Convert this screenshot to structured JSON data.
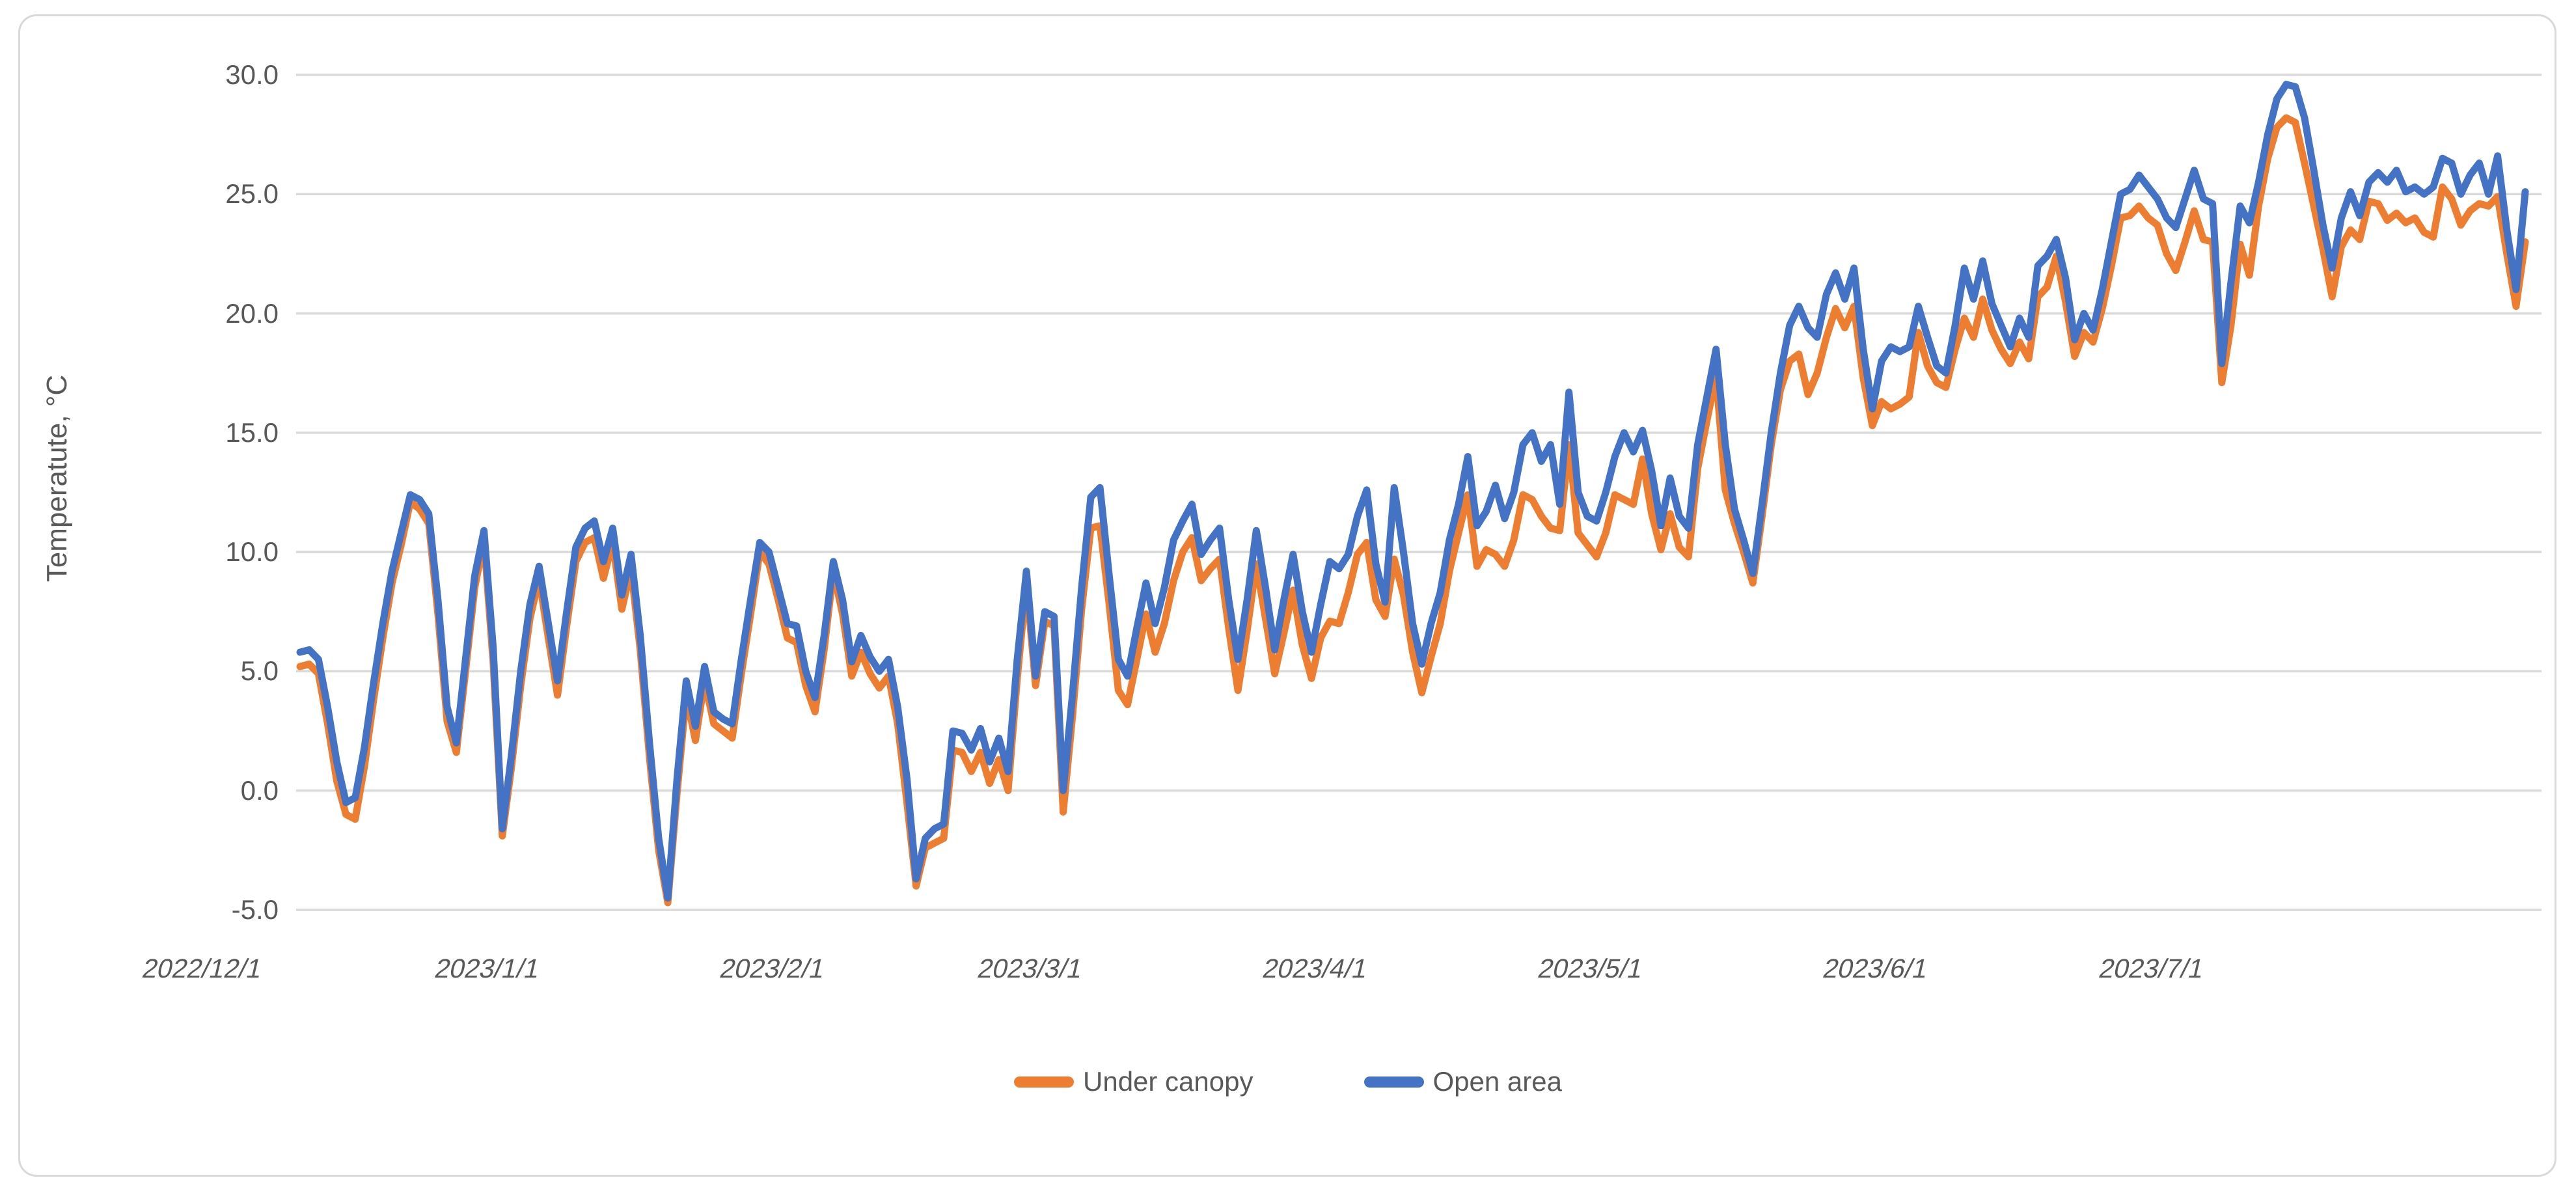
{
  "chart": {
    "title": "",
    "y_axis_title": "Temperatute, °C",
    "background_color": "#FFFFFF",
    "border_color": "#D9D9D9",
    "gridline_color": "#D9D9D9",
    "label_color": "#595959",
    "legend": [
      {
        "label": "Under canopy",
        "color": "#ED7D31"
      },
      {
        "label": "Open area",
        "color": "#4472C4"
      }
    ]
  },
  "chart_data": {
    "type": "line",
    "title": "",
    "xlabel": "",
    "ylabel": "Temperatute, °C",
    "ylim": [
      -5.0,
      30.0
    ],
    "y_ticks": [
      30.0,
      25.0,
      20.0,
      15.0,
      10.0,
      5.0,
      0.0,
      -5.0
    ],
    "y_tick_format": "one_decimal",
    "grid": "horizontal",
    "legend_position": "bottom-center",
    "x_unit": "day",
    "x_start_date": "2022/12/1",
    "x_end_date": "2023/7/31",
    "x_total_days": 243,
    "x_tick_labels": [
      "2022/12/1",
      "2023/1/1",
      "2023/2/1",
      "2023/3/1",
      "2023/4/1",
      "2023/5/1",
      "2023/6/1",
      "2023/7/1"
    ],
    "x_tick_day_index": [
      0,
      31,
      62,
      90,
      121,
      151,
      182,
      212
    ],
    "series": [
      {
        "name": "Under canopy",
        "color": "#ED7D31",
        "values": [
          5.2,
          5.3,
          4.9,
          2.8,
          0.4,
          -1.0,
          -1.2,
          1.0,
          3.8,
          6.4,
          8.7,
          10.3,
          12.1,
          11.8,
          11.2,
          7.4,
          2.9,
          1.6,
          5.0,
          8.5,
          10.5,
          5.4,
          -1.9,
          1.0,
          4.4,
          7.2,
          8.9,
          6.4,
          4.0,
          6.9,
          9.6,
          10.4,
          10.6,
          8.9,
          10.4,
          7.6,
          9.3,
          5.9,
          1.4,
          -2.5,
          -4.7,
          -0.1,
          4.0,
          2.1,
          4.6,
          2.8,
          2.5,
          2.2,
          4.9,
          7.4,
          10.0,
          9.5,
          8.0,
          6.4,
          6.2,
          4.4,
          3.3,
          5.9,
          9.2,
          7.4,
          4.8,
          5.8,
          4.9,
          4.3,
          4.8,
          2.8,
          -0.5,
          -4.0,
          -2.4,
          -2.2,
          -2.0,
          1.7,
          1.6,
          0.8,
          1.6,
          0.3,
          1.3,
          0.0,
          4.7,
          8.7,
          4.4,
          7.1,
          6.9,
          -0.9,
          3.1,
          7.6,
          11.0,
          11.1,
          7.8,
          4.2,
          3.6,
          5.5,
          7.4,
          5.8,
          7.0,
          8.8,
          10.0,
          10.6,
          8.8,
          9.3,
          9.7,
          6.8,
          4.2,
          6.7,
          9.5,
          7.2,
          4.9,
          6.6,
          8.4,
          6.1,
          4.7,
          6.4,
          7.1,
          7.0,
          8.3,
          9.9,
          10.4,
          8.0,
          7.3,
          9.7,
          8.2,
          5.8,
          4.1,
          5.6,
          7.0,
          9.2,
          10.8,
          12.4,
          9.4,
          10.1,
          9.9,
          9.4,
          10.5,
          12.4,
          12.2,
          11.5,
          11.0,
          10.9,
          14.5,
          10.8,
          10.3,
          9.8,
          10.8,
          12.4,
          12.2,
          12.0,
          13.9,
          11.6,
          10.1,
          11.6,
          10.2,
          9.8,
          13.5,
          15.5,
          17.4,
          12.6,
          11.2,
          10.0,
          8.7,
          11.5,
          14.5,
          16.8,
          18.0,
          18.3,
          16.6,
          17.5,
          19.0,
          20.2,
          19.4,
          20.3,
          17.3,
          15.3,
          16.3,
          16.0,
          16.2,
          16.5,
          19.2,
          17.8,
          17.1,
          16.9,
          18.5,
          19.8,
          19.0,
          20.6,
          19.3,
          18.5,
          17.9,
          18.8,
          18.1,
          20.7,
          21.1,
          22.4,
          20.5,
          18.2,
          19.2,
          18.8,
          20.2,
          22.0,
          24.0,
          24.1,
          24.5,
          24.0,
          23.7,
          22.5,
          21.8,
          23.0,
          24.3,
          23.1,
          23.0,
          17.1,
          19.5,
          22.9,
          21.6,
          24.5,
          26.5,
          27.8,
          28.2,
          28.0,
          26.3,
          24.5,
          22.7,
          20.7,
          22.8,
          23.5,
          23.1,
          24.7,
          24.6,
          23.9,
          24.2,
          23.8,
          24.0,
          23.4,
          23.2,
          25.3,
          24.8,
          23.7,
          24.3,
          24.6,
          24.5,
          24.9,
          22.5,
          20.3,
          23.0
        ]
      },
      {
        "name": "Open area",
        "color": "#4472C4",
        "values": [
          5.8,
          5.9,
          5.5,
          3.5,
          1.2,
          -0.5,
          -0.3,
          1.8,
          4.5,
          7.0,
          9.2,
          10.8,
          12.4,
          12.2,
          11.6,
          8.0,
          3.5,
          2.0,
          5.5,
          9.0,
          10.9,
          6.0,
          -1.6,
          1.5,
          5.0,
          7.8,
          9.4,
          7.0,
          4.6,
          7.5,
          10.2,
          11.0,
          11.3,
          9.6,
          11.0,
          8.2,
          9.9,
          6.5,
          2.0,
          -2.0,
          -4.5,
          0.5,
          4.6,
          2.7,
          5.2,
          3.3,
          3.0,
          2.8,
          5.5,
          8.0,
          10.4,
          10.0,
          8.5,
          7.0,
          6.9,
          5.0,
          3.9,
          6.5,
          9.6,
          8.0,
          5.4,
          6.5,
          5.6,
          5.0,
          5.5,
          3.5,
          0.5,
          -3.7,
          -2.0,
          -1.6,
          -1.4,
          2.5,
          2.4,
          1.7,
          2.6,
          1.2,
          2.2,
          0.8,
          5.5,
          9.2,
          4.8,
          7.5,
          7.3,
          0.0,
          4.0,
          8.5,
          12.3,
          12.7,
          9.0,
          5.5,
          4.8,
          6.8,
          8.7,
          7.0,
          8.5,
          10.5,
          11.3,
          12.0,
          9.9,
          10.5,
          11.0,
          8.0,
          5.5,
          8.0,
          10.9,
          8.5,
          5.9,
          8.0,
          9.9,
          7.5,
          5.8,
          7.8,
          9.6,
          9.3,
          9.9,
          11.5,
          12.6,
          9.5,
          7.9,
          12.7,
          10.0,
          7.0,
          5.3,
          7.0,
          8.3,
          10.5,
          12.0,
          14.0,
          11.1,
          11.7,
          12.8,
          11.4,
          12.5,
          14.5,
          15.0,
          13.8,
          14.5,
          12.0,
          16.7,
          12.5,
          11.5,
          11.3,
          12.5,
          14.0,
          15.0,
          14.2,
          15.1,
          13.4,
          11.1,
          13.1,
          11.5,
          11.0,
          14.5,
          16.5,
          18.5,
          14.5,
          11.8,
          10.5,
          9.1,
          12.0,
          15.0,
          17.5,
          19.5,
          20.3,
          19.4,
          19.0,
          20.8,
          21.7,
          20.6,
          21.9,
          18.5,
          16.0,
          18.0,
          18.6,
          18.4,
          18.6,
          20.3,
          19.0,
          17.8,
          17.5,
          19.5,
          21.9,
          20.6,
          22.2,
          20.4,
          19.5,
          18.6,
          19.8,
          19.0,
          22.0,
          22.4,
          23.1,
          21.5,
          18.9,
          20.0,
          19.3,
          21.0,
          23.0,
          25.0,
          25.2,
          25.8,
          25.3,
          24.8,
          24.0,
          23.6,
          24.8,
          26.0,
          24.8,
          24.6,
          17.9,
          21.3,
          24.5,
          23.8,
          25.5,
          27.5,
          29.0,
          29.6,
          29.5,
          28.2,
          26.0,
          23.7,
          21.9,
          24.0,
          25.1,
          24.1,
          25.5,
          25.9,
          25.5,
          26.0,
          25.1,
          25.3,
          25.0,
          25.3,
          26.5,
          26.3,
          25.0,
          25.8,
          26.3,
          25.0,
          26.6,
          23.5,
          21.0,
          25.1
        ]
      }
    ]
  }
}
